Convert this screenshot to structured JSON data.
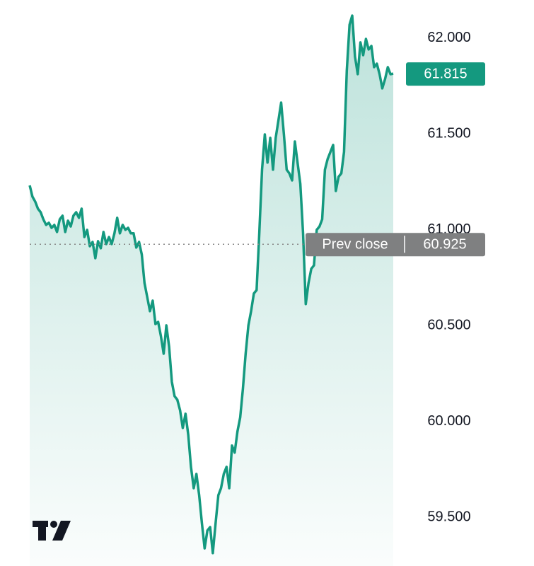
{
  "chart_data": {
    "type": "line",
    "color": "#14997f",
    "values": [
      61.232,
      61.173,
      61.148,
      61.111,
      61.092,
      61.055,
      61.026,
      61.037,
      61.011,
      61.026,
      60.989,
      61.055,
      61.074,
      60.989,
      61.048,
      61.018,
      61.074,
      61.092,
      61.063,
      61.111,
      60.963,
      61.0,
      60.915,
      60.937,
      60.852,
      60.941,
      60.904,
      60.989,
      60.926,
      60.963,
      60.926,
      60.982,
      61.063,
      60.982,
      61.026,
      61.0,
      61.011,
      60.982,
      60.982,
      60.908,
      60.937,
      60.871,
      60.723,
      60.649,
      60.576,
      60.631,
      60.509,
      60.52,
      60.446,
      60.354,
      60.502,
      60.391,
      60.207,
      60.133,
      60.114,
      60.059,
      59.967,
      60.041,
      59.93,
      59.764,
      59.653,
      59.727,
      59.616,
      59.469,
      59.339,
      59.432,
      59.45,
      59.314,
      59.469,
      59.616,
      59.653,
      59.727,
      59.764,
      59.653,
      59.875,
      59.838,
      59.948,
      60.022,
      60.17,
      60.354,
      60.502,
      60.576,
      60.668,
      60.686,
      60.982,
      61.314,
      61.498,
      61.351,
      61.48,
      61.314,
      61.48,
      61.572,
      61.664,
      61.498,
      61.314,
      61.295,
      61.258,
      61.461,
      61.351,
      61.24,
      60.982,
      60.613,
      60.723,
      60.797,
      60.815,
      61.0,
      61.018,
      61.055,
      61.314,
      61.369,
      61.406,
      61.443,
      61.203,
      61.277,
      61.295,
      61.406,
      61.83,
      62.07,
      62.118,
      61.904,
      61.812,
      61.978,
      61.911,
      61.996,
      61.941,
      61.959,
      61.849,
      61.867,
      61.812,
      61.738,
      61.786,
      61.849,
      61.812,
      61.815
    ],
    "ylim": [
      59.247,
      62.199
    ],
    "yticks": [
      {
        "value": 62,
        "label": "62.000"
      },
      {
        "value": 61.5,
        "label": "61.500"
      },
      {
        "value": 61,
        "label": "61.000"
      },
      {
        "value": 60.5,
        "label": "60.500"
      },
      {
        "value": 60,
        "label": "60.000"
      },
      {
        "value": 59.5,
        "label": "59.500"
      }
    ],
    "prev_close": {
      "value": 60.925,
      "label": "60.925"
    },
    "prev_close_text": "Prev close",
    "last_price": {
      "value": 61.815,
      "label": "61.815"
    }
  }
}
